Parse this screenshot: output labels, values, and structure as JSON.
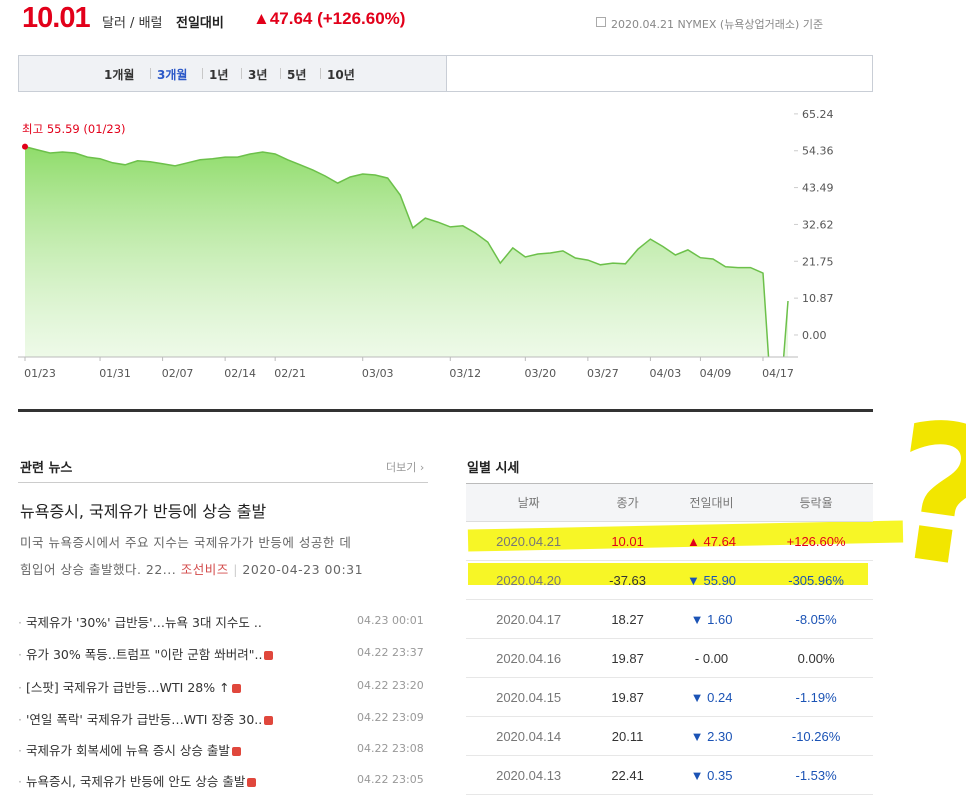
{
  "header": {
    "price": "10.01",
    "unit": "달러 / 배럴",
    "compare_label": "전일대비",
    "compare_value": "▲47.64 (+126.60%)",
    "source": "2020.04.21 NYMEX (뉴욕상업거래소) 기준"
  },
  "tabs": [
    "1개월",
    "3개월",
    "1년",
    "3년",
    "5년",
    "10년"
  ],
  "selected_tab": 1,
  "chart_data": {
    "type": "line",
    "annotation": "최고 55.59 (01/23)",
    "color": "#6cc04a",
    "categories": [
      "01/23",
      null,
      null,
      null,
      null,
      null,
      "01/31",
      null,
      null,
      null,
      null,
      "02/07",
      null,
      null,
      null,
      null,
      "02/14",
      null,
      null,
      null,
      "02/21",
      null,
      null,
      null,
      null,
      null,
      null,
      "03/03",
      null,
      null,
      null,
      null,
      null,
      null,
      "03/12",
      null,
      null,
      null,
      null,
      null,
      "03/20",
      null,
      null,
      null,
      null,
      "03/27",
      null,
      null,
      null,
      null,
      "04/03",
      null,
      null,
      null,
      "04/09",
      null,
      null,
      null,
      null,
      "04/17",
      null,
      null
    ],
    "values": [
      55.59,
      54.6,
      53.7,
      54.0,
      53.7,
      52.5,
      52.0,
      50.8,
      50.2,
      51.4,
      51.1,
      50.5,
      49.9,
      50.8,
      51.7,
      52.0,
      52.5,
      52.5,
      53.4,
      54.0,
      53.4,
      51.7,
      50.2,
      48.7,
      46.9,
      44.8,
      46.6,
      47.5,
      47.2,
      46.3,
      41.3,
      31.6,
      34.5,
      33.3,
      31.9,
      32.2,
      30.1,
      27.4,
      21.2,
      25.7,
      23.0,
      23.9,
      24.2,
      24.8,
      22.7,
      22.1,
      20.7,
      21.2,
      21.0,
      25.3,
      28.3,
      26.1,
      23.6,
      25.1,
      22.8,
      22.41,
      20.11,
      19.87,
      19.87,
      18.27,
      -37.63,
      10.01
    ],
    "ylim": [
      -6.5,
      71.4
    ],
    "yticks": [
      65.24,
      54.36,
      43.49,
      32.62,
      21.75,
      10.87,
      {
        "value": 0,
        "label": "0.00"
      }
    ]
  },
  "news": {
    "title": "관련 뉴스",
    "more": "더보기",
    "headline": "뉴욕증시, 국제유가 반등에 상승 출발",
    "summary_1": "미국 뉴욕증시에서 주요 지수는 국제유가가 반등에 성공한 데",
    "summary_2": "힘입어 상승 출발했다. 22...",
    "source": "조선비즈",
    "date": "2020-04-23 00:31",
    "items": [
      {
        "text": "국제유가 '30%' 급반등'…뉴욕 3대 지수도 ..",
        "time": "04.23 00:01"
      },
      {
        "text": "유가 30% 폭등‥트럼프 \"이란 군함 쏴버려\"..",
        "time": "04.22 23:37"
      },
      {
        "text": "[스팟] 국제유가 급반등…WTI 28% ↑",
        "time": "04.22 23:20"
      },
      {
        "text": "'연일 폭락' 국제유가 급반등…WTI 장중 30..",
        "time": "04.22 23:09"
      },
      {
        "text": "국제유가 회복세에 뉴욕 증시 상승 출발",
        "time": "04.22 23:08"
      },
      {
        "text": "뉴욕증시, 국제유가 반등에 안도 상승 출발",
        "time": "04.22 23:05"
      }
    ]
  },
  "daily": {
    "title": "일별 시세",
    "columns": [
      "날짜",
      "종가",
      "전일대비",
      "등락율"
    ],
    "rows": [
      [
        "2020.04.21",
        "10.01",
        "▲ 47.64",
        "+126.60%"
      ],
      [
        "2020.04.20",
        "-37.63",
        "▼ 55.90",
        "-305.96%"
      ],
      [
        "2020.04.17",
        "18.27",
        "▼ 1.60",
        "-8.05%"
      ],
      [
        "2020.04.16",
        "19.87",
        "- 0.00",
        "0.00%"
      ],
      [
        "2020.04.15",
        "19.87",
        "▼ 0.24",
        "-1.19%"
      ],
      [
        "2020.04.14",
        "20.11",
        "▼ 2.30",
        "-10.26%"
      ],
      [
        "2020.04.13",
        "22.41",
        "▼ 0.35",
        "-1.53%"
      ]
    ]
  },
  "annotation": "?"
}
